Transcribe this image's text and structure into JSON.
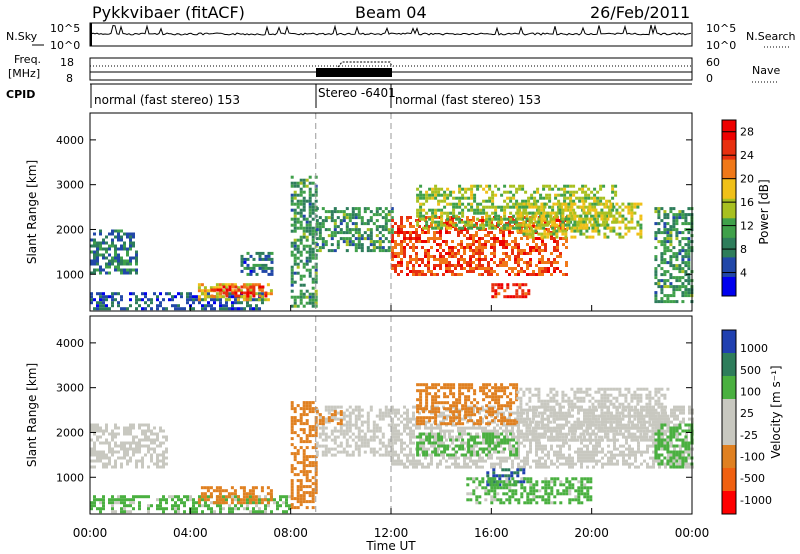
{
  "header": {
    "station": "Pykkvibaer (fitACF)",
    "beam": "Beam 04",
    "date": "26/Feb/2011"
  },
  "panels": {
    "nsky": {
      "label": "N.Sky",
      "ticks_left": [
        "10^5",
        "10^0"
      ],
      "ticks_right": [
        "10^5",
        "10^0"
      ],
      "right_label": "N.Search"
    },
    "freq": {
      "label_line1": "Freq.",
      "label_line2": "[MHz]",
      "ticks_left": [
        "18",
        "8"
      ],
      "ticks_right": [
        "60",
        "0"
      ],
      "right_label": "Nave"
    },
    "cpid": {
      "label": "CPID",
      "segments": [
        {
          "text": "normal (fast stereo) 153",
          "start_h": 0,
          "end_h": 9
        },
        {
          "text": "Stereo -6401",
          "start_h": 9,
          "end_h": 12
        },
        {
          "text": "normal (fast stereo) 153",
          "start_h": 12,
          "end_h": 24
        }
      ]
    }
  },
  "axes": {
    "ylabel": "Slant Range [km]",
    "xlabel": "Time UT",
    "yticks": [
      "1000",
      "2000",
      "3000",
      "4000"
    ],
    "xticks": [
      "00:00",
      "04:00",
      "08:00",
      "12:00",
      "16:00",
      "20:00",
      "00:00"
    ]
  },
  "colorbars": {
    "power": {
      "label": "Power [dB]",
      "ticks": [
        "4",
        "8",
        "12",
        "16",
        "20",
        "24",
        "28"
      ],
      "colors": [
        "#0000ee",
        "#2147a8",
        "#2e7d5b",
        "#3fa04a",
        "#a8c020",
        "#f0c018",
        "#f07818",
        "#e83010",
        "#ee0000"
      ]
    },
    "velocity": {
      "label": "Velocity [m s⁻¹]",
      "ticks": [
        "1000",
        "500",
        "100",
        "25",
        "-25",
        "-100",
        "-500",
        "-1000"
      ],
      "colors": [
        "#2040b0",
        "#2e7d5b",
        "#4ab040",
        "#c8c8c0",
        "#e08020",
        "#f06010",
        "#ff0000"
      ]
    }
  },
  "chart_data": [
    {
      "type": "heatmap",
      "name": "Power",
      "x_range_hours": [
        0,
        24
      ],
      "y_range_km": [
        180,
        4600
      ],
      "value_unit": "dB",
      "clim": [
        0,
        30
      ],
      "regions": [
        {
          "t": [
            0.0,
            1.8
          ],
          "r": [
            1000,
            2000
          ],
          "value": 8
        },
        {
          "t": [
            0.0,
            7.0
          ],
          "r": [
            200,
            600
          ],
          "value": 6
        },
        {
          "t": [
            4.3,
            7.2
          ],
          "r": [
            450,
            800
          ],
          "value": 18
        },
        {
          "t": [
            4.8,
            7.0
          ],
          "r": [
            500,
            750
          ],
          "value": 26
        },
        {
          "t": [
            6.0,
            7.2
          ],
          "r": [
            1000,
            1500
          ],
          "value": 7
        },
        {
          "t": [
            8.0,
            9.0
          ],
          "r": [
            300,
            3200
          ],
          "value": 10
        },
        {
          "t": [
            9.0,
            12.0
          ],
          "r": [
            1500,
            2500
          ],
          "value": 10
        },
        {
          "t": [
            12.0,
            19.0
          ],
          "r": [
            1000,
            2300
          ],
          "value": 24
        },
        {
          "t": [
            16.0,
            17.5
          ],
          "r": [
            500,
            800
          ],
          "value": 26
        },
        {
          "t": [
            13.0,
            21.0
          ],
          "r": [
            2000,
            3000
          ],
          "value": 14
        },
        {
          "t": [
            17.0,
            22.0
          ],
          "r": [
            1800,
            2600
          ],
          "value": 16
        },
        {
          "t": [
            22.5,
            24.0
          ],
          "r": [
            400,
            2500
          ],
          "value": 10
        }
      ]
    },
    {
      "type": "heatmap",
      "name": "Velocity",
      "x_range_hours": [
        0,
        24
      ],
      "y_range_km": [
        180,
        4600
      ],
      "value_unit": "m s-1",
      "regions": [
        {
          "t": [
            0.0,
            3.0
          ],
          "r": [
            1200,
            2200
          ],
          "value": 0
        },
        {
          "t": [
            0.0,
            8.0
          ],
          "r": [
            200,
            600
          ],
          "value": 60
        },
        {
          "t": [
            4.3,
            7.2
          ],
          "r": [
            400,
            800
          ],
          "value": -150
        },
        {
          "t": [
            8.0,
            9.0
          ],
          "r": [
            300,
            2700
          ],
          "value": -150
        },
        {
          "t": [
            9.0,
            12.0
          ],
          "r": [
            1500,
            2600
          ],
          "value": 0
        },
        {
          "t": [
            9.0,
            10.0
          ],
          "r": [
            2200,
            2500
          ],
          "value": -150
        },
        {
          "t": [
            12.0,
            24.0
          ],
          "r": [
            1200,
            2600
          ],
          "value": 0
        },
        {
          "t": [
            13.0,
            17.0
          ],
          "r": [
            2200,
            3100
          ],
          "value": -200
        },
        {
          "t": [
            13.0,
            17.0
          ],
          "r": [
            1500,
            2000
          ],
          "value": 60
        },
        {
          "t": [
            15.8,
            17.3
          ],
          "r": [
            800,
            1200
          ],
          "value": 700
        },
        {
          "t": [
            15.0,
            20.0
          ],
          "r": [
            400,
            1000
          ],
          "value": 60
        },
        {
          "t": [
            17.0,
            23.0
          ],
          "r": [
            1800,
            3000
          ],
          "value": 0
        },
        {
          "t": [
            22.5,
            24.0
          ],
          "r": [
            1200,
            2200
          ],
          "value": 200
        }
      ]
    }
  ]
}
